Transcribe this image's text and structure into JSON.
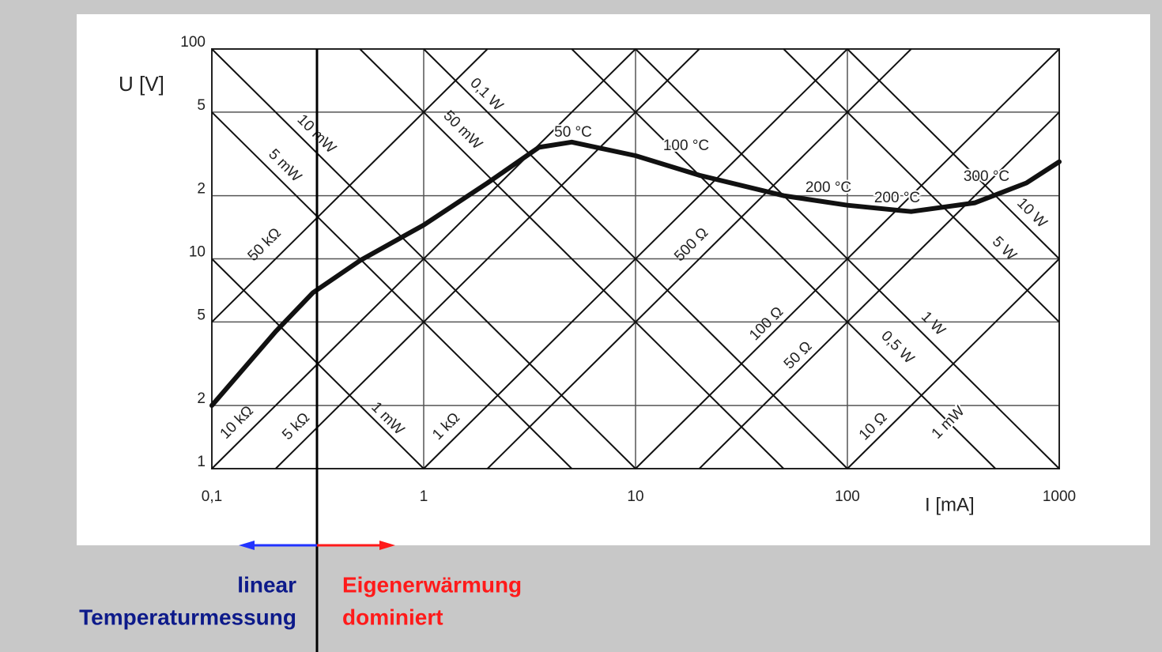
{
  "chart_data": {
    "type": "line",
    "x_label": "I [mA]",
    "y_label": "U [V]",
    "log_x": true,
    "log_y": true,
    "grid": true,
    "xlim": [
      0.1,
      1000
    ],
    "ylim": [
      1,
      100
    ],
    "xticks": [
      {
        "value": 0.1,
        "label": "0,1"
      },
      1,
      10,
      100,
      1000
    ],
    "yticks": [
      1,
      2,
      5,
      10,
      {
        "value": 20,
        "label": "2"
      },
      {
        "value": 50,
        "label": "5"
      },
      100
    ],
    "series": [
      {
        "color": "#111111",
        "x": [
          0.1,
          0.2,
          0.3,
          0.5,
          1,
          2,
          3.5,
          5,
          10,
          20,
          50,
          100,
          200,
          400,
          700,
          1000
        ],
        "values": [
          2,
          4.5,
          6.9,
          9.8,
          14.5,
          23,
          34,
          36,
          31,
          25,
          20,
          18,
          16.8,
          18.5,
          23,
          29
        ]
      }
    ],
    "resistance_lines": {
      "values": [
        50000,
        10000,
        5000,
        1000,
        500,
        100,
        50,
        10
      ],
      "labels": [
        "50 kΩ",
        "10 kΩ",
        "5 kΩ",
        "1 kΩ",
        "500 Ω",
        "100 Ω",
        "50 Ω",
        "10 Ω"
      ]
    },
    "power_lines": {
      "values": [
        1,
        5,
        10,
        50,
        100,
        500,
        1000,
        5000,
        10000
      ],
      "labels": [
        "1 mW",
        "5 mW",
        "10 mW",
        "50 mW",
        "0,1 W",
        "0,5 W",
        "1 W",
        "5 W",
        "10 W"
      ]
    },
    "annotations": [
      "50 °C",
      "100 °C",
      "200 °C",
      "200 °C",
      "300 °C",
      "1 mW"
    ]
  },
  "slide": {
    "left_text": [
      "linear",
      "Temperaturmessung"
    ],
    "right_text": [
      "Eigenerwärmung",
      "dominiert"
    ]
  }
}
